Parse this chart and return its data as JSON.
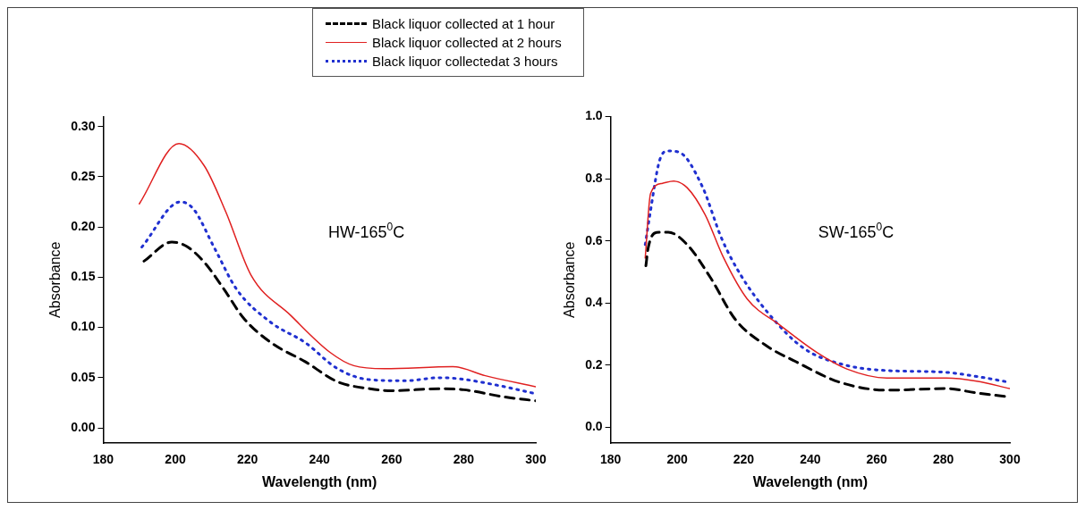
{
  "chart_data": [
    {
      "type": "line",
      "xlabel": "Wavelength (nm)",
      "ylabel": "Absorbance",
      "annotations": [
        "HW-165$^{0}$C"
      ],
      "xlim": [
        180,
        300
      ],
      "xticks": [
        180,
        200,
        220,
        240,
        260,
        280,
        300
      ],
      "ylim": [
        -0.015,
        0.31
      ],
      "yticks": [
        {
          "value": 0,
          "label": "0.00"
        },
        {
          "value": 0.05,
          "label": "0.05"
        },
        {
          "value": 0.1,
          "label": "0.10"
        },
        {
          "value": 0.15,
          "label": "0.15"
        },
        {
          "value": 0.2,
          "label": "0.20"
        },
        {
          "value": 0.25,
          "label": "0.25"
        },
        {
          "value": 0.3,
          "label": "0.30"
        }
      ],
      "marker": "none",
      "legend": "top",
      "grid": false,
      "series": [
        {
          "name": "Black liquor collected at 1 hour",
          "color": "#000000",
          "line_style": "dashed",
          "x": [
            191.3,
            199,
            203,
            208,
            213.5,
            219,
            226.5,
            236,
            245,
            254,
            260,
            273,
            280,
            291,
            300
          ],
          "values": [
            0.166,
            0.185,
            0.181,
            0.165,
            0.138,
            0.109,
            0.085,
            0.066,
            0.046,
            0.039,
            0.037,
            0.039,
            0.038,
            0.031,
            0.027
          ]
        },
        {
          "name": "Black liquor collected at 2 hours",
          "color": "#e02020",
          "line_style": "solid",
          "x": [
            190,
            201,
            208,
            214,
            221,
            232,
            243,
            249.5,
            258,
            277,
            286,
            300
          ],
          "values": [
            0.223,
            0.283,
            0.261,
            0.215,
            0.152,
            0.112,
            0.075,
            0.062,
            0.059,
            0.061,
            0.052,
            0.041
          ]
        },
        {
          "name": "Black liquor collectedat 3 hours",
          "color": "#2030d0",
          "line_style": "dotted",
          "x": [
            190.7,
            201.4,
            205,
            211,
            217,
            226.5,
            236,
            245,
            254,
            264,
            273,
            278.6,
            290,
            300
          ],
          "values": [
            0.18,
            0.225,
            0.218,
            0.178,
            0.138,
            0.105,
            0.085,
            0.059,
            0.048,
            0.047,
            0.05,
            0.049,
            0.042,
            0.034
          ]
        }
      ]
    },
    {
      "type": "line",
      "xlabel": "Wavelength (nm)",
      "ylabel": "Absorbance",
      "annotations": [
        "SW-165$^{0}$C"
      ],
      "xlim": [
        180,
        300
      ],
      "xticks": [
        180,
        200,
        220,
        240,
        260,
        280,
        300
      ],
      "ylim": [
        -0.05,
        1.0
      ],
      "yticks": [
        {
          "value": 0,
          "label": "0.0"
        },
        0.2,
        0.4,
        0.6,
        0.8,
        {
          "value": 1,
          "label": "1.0"
        }
      ],
      "marker": "none",
      "grid": false,
      "series": [
        {
          "color": "#000000",
          "line_style": "dashed",
          "x": [
            190.6,
            191.3,
            193.8,
            197.3,
            203,
            210,
            217.5,
            226.5,
            235.6,
            249,
            263,
            281,
            290,
            300
          ],
          "values": [
            0.52,
            0.578,
            0.627,
            0.628,
            0.588,
            0.482,
            0.347,
            0.265,
            0.212,
            0.145,
            0.12,
            0.125,
            0.111,
            0.098
          ]
        },
        {
          "color": "#e02020",
          "line_style": "solid",
          "x": [
            190.4,
            192,
            195.6,
            199,
            203,
            208.4,
            213.8,
            221,
            231,
            242,
            251,
            263,
            281,
            290,
            300
          ],
          "values": [
            0.545,
            0.752,
            0.785,
            0.792,
            0.771,
            0.684,
            0.549,
            0.414,
            0.328,
            0.241,
            0.188,
            0.159,
            0.159,
            0.149,
            0.125
          ]
        },
        {
          "color": "#2030d0",
          "line_style": "dotted",
          "x": [
            190.4,
            191.8,
            194.7,
            197.3,
            200.6,
            207.5,
            213.4,
            219,
            227.5,
            238,
            250,
            263,
            280,
            290,
            300
          ],
          "values": [
            0.588,
            0.684,
            0.858,
            0.889,
            0.885,
            0.776,
            0.607,
            0.492,
            0.366,
            0.255,
            0.202,
            0.183,
            0.178,
            0.164,
            0.145
          ]
        }
      ]
    }
  ]
}
